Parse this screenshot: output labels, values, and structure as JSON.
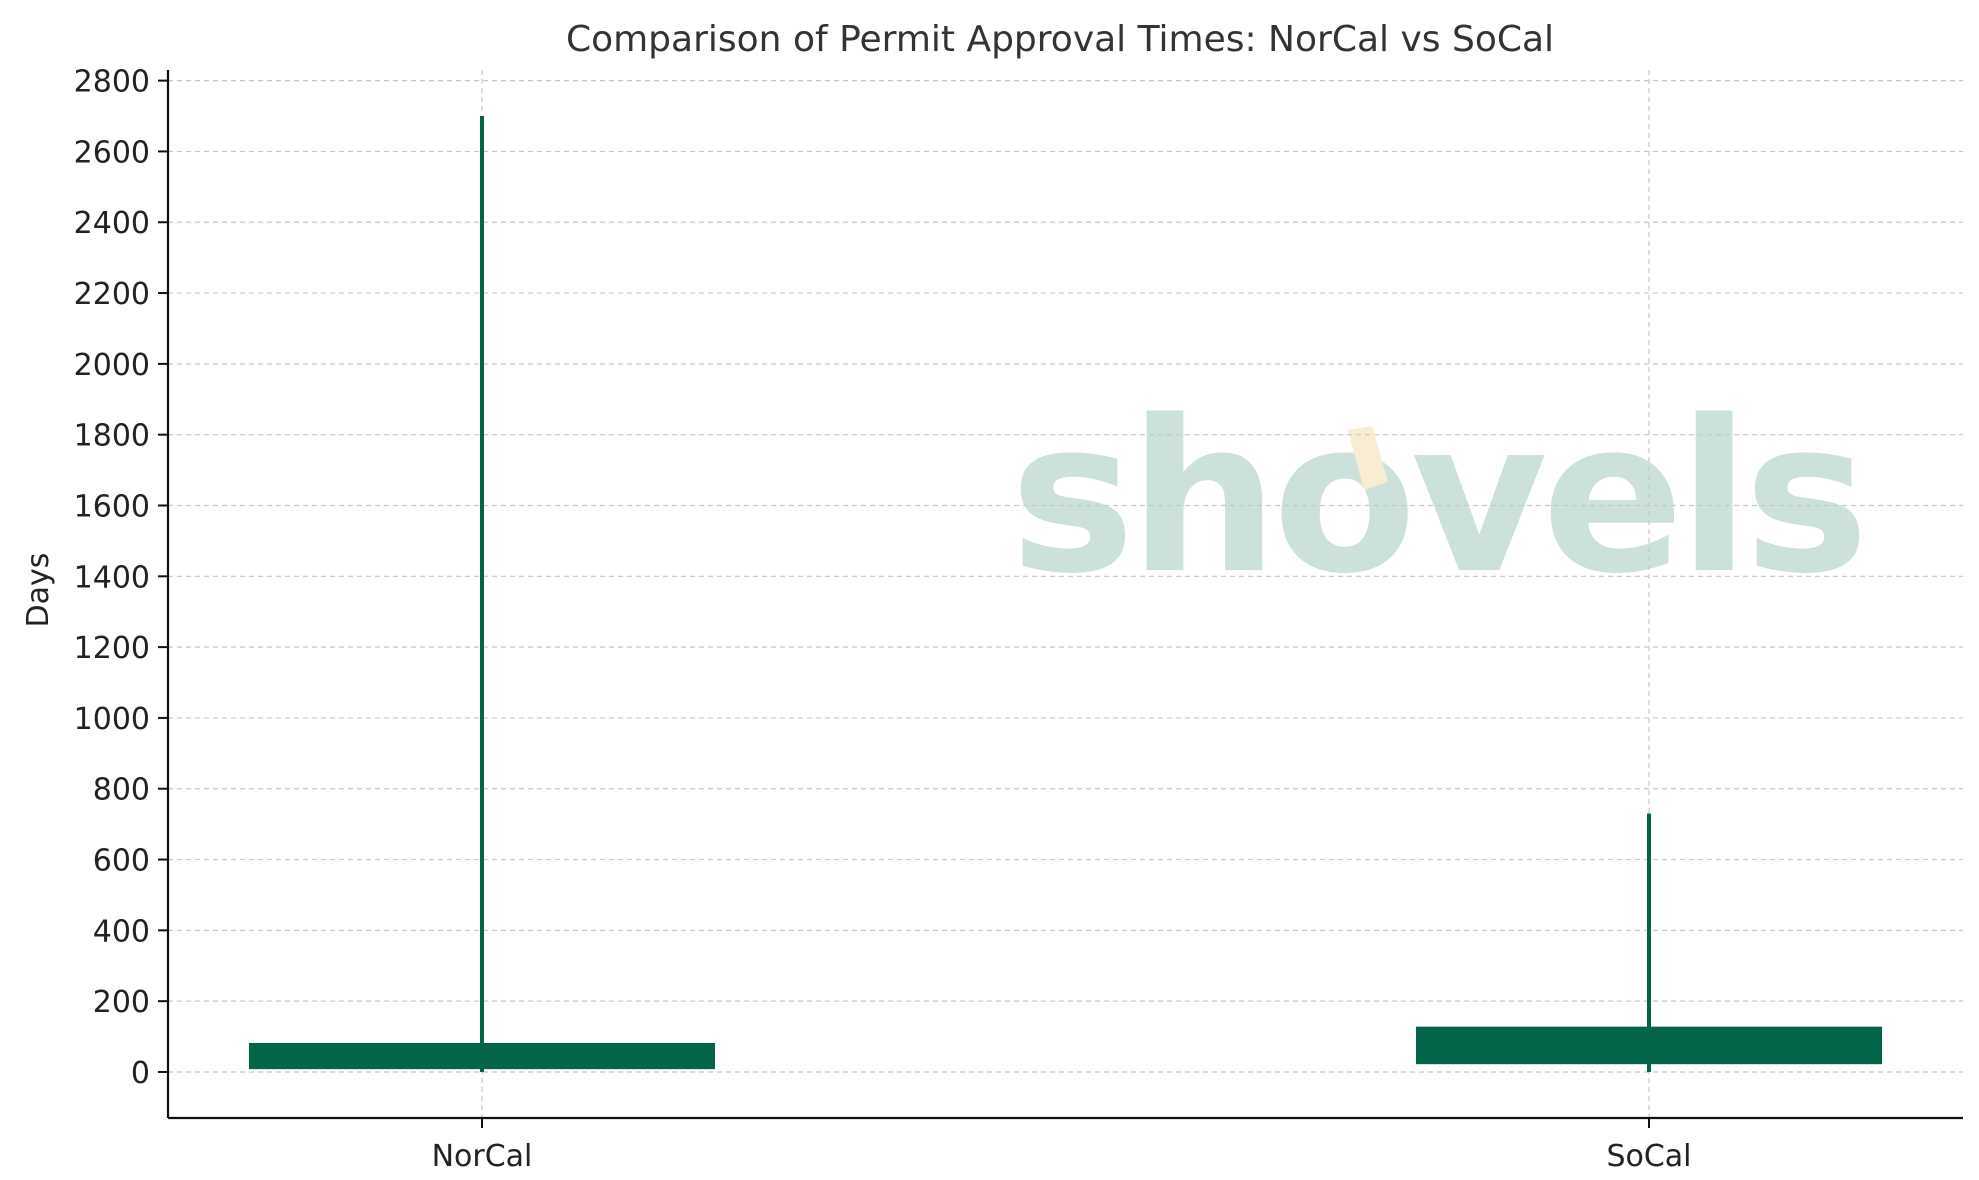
{
  "chart_data": {
    "type": "box",
    "title": "Comparison of Permit Approval Times: NorCal vs SoCal",
    "xlabel": "",
    "ylabel": "Days",
    "ylim": [
      -130,
      2830
    ],
    "yticks": [
      0,
      200,
      400,
      600,
      800,
      1000,
      1200,
      1400,
      1600,
      1800,
      2000,
      2200,
      2400,
      2600,
      2800
    ],
    "grid": true,
    "categories": [
      "NorCal",
      "SoCal"
    ],
    "boxes": [
      {
        "name": "NorCal",
        "whisker_low": 0,
        "q1": 8,
        "median": 25,
        "q3": 82,
        "whisker_high": 2700
      },
      {
        "name": "SoCal",
        "whisker_low": 0,
        "q1": 22,
        "median": 60,
        "q3": 128,
        "whisker_high": 730
      }
    ],
    "box_color": "#036449",
    "watermark": {
      "text": "shovels",
      "color": "#cbe1da",
      "accent_color": "#f8ecd2"
    }
  }
}
